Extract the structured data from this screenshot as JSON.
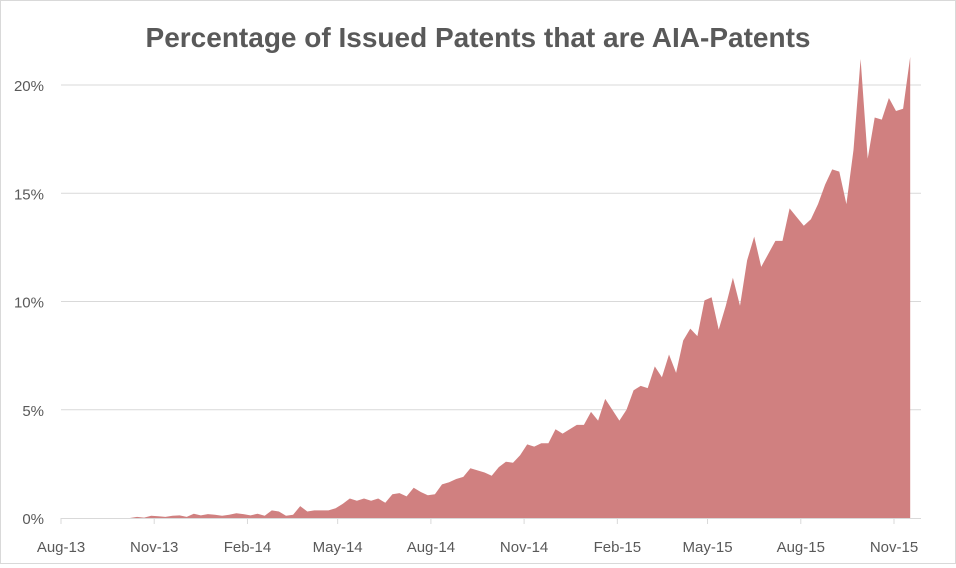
{
  "chart_data": {
    "type": "area",
    "title": "Percentage of Issued Patents that are AIA-Patents",
    "xlabel": "",
    "ylabel": "",
    "ylim": [
      0,
      0.2
    ],
    "y_ticks": [
      0,
      0.05,
      0.1,
      0.15,
      0.2
    ],
    "y_tick_labels": [
      "0%",
      "5%",
      "10%",
      "15%",
      "20%"
    ],
    "x_ticks": [
      "2013-08-01",
      "2013-11-01",
      "2014-02-01",
      "2014-05-01",
      "2014-08-01",
      "2014-11-01",
      "2015-02-01",
      "2015-05-01",
      "2015-08-01",
      "2015-11-01"
    ],
    "x_tick_labels": [
      "Aug-13",
      "Nov-13",
      "Feb-14",
      "May-14",
      "Aug-14",
      "Nov-14",
      "Feb-15",
      "May-15",
      "Aug-15",
      "Nov-15"
    ],
    "grid": "horizontal",
    "legend": "none",
    "fill_color": "#d08080",
    "x": [
      "2013-08-06",
      "2013-08-13",
      "2013-08-20",
      "2013-08-27",
      "2013-09-03",
      "2013-09-10",
      "2013-09-17",
      "2013-09-24",
      "2013-10-01",
      "2013-10-08",
      "2013-10-15",
      "2013-10-22",
      "2013-10-29",
      "2013-11-05",
      "2013-11-12",
      "2013-11-19",
      "2013-11-26",
      "2013-12-03",
      "2013-12-10",
      "2013-12-17",
      "2013-12-24",
      "2013-12-31",
      "2014-01-07",
      "2014-01-14",
      "2014-01-21",
      "2014-01-28",
      "2014-02-04",
      "2014-02-11",
      "2014-02-18",
      "2014-02-25",
      "2014-03-04",
      "2014-03-11",
      "2014-03-18",
      "2014-03-25",
      "2014-04-01",
      "2014-04-08",
      "2014-04-15",
      "2014-04-22",
      "2014-04-29",
      "2014-05-06",
      "2014-05-13",
      "2014-05-20",
      "2014-05-27",
      "2014-06-03",
      "2014-06-10",
      "2014-06-17",
      "2014-06-24",
      "2014-07-01",
      "2014-07-08",
      "2014-07-15",
      "2014-07-22",
      "2014-07-29",
      "2014-08-05",
      "2014-08-12",
      "2014-08-19",
      "2014-08-26",
      "2014-09-02",
      "2014-09-09",
      "2014-09-16",
      "2014-09-23",
      "2014-09-30",
      "2014-10-07",
      "2014-10-14",
      "2014-10-21",
      "2014-10-28",
      "2014-11-04",
      "2014-11-11",
      "2014-11-18",
      "2014-11-25",
      "2014-12-02",
      "2014-12-09",
      "2014-12-16",
      "2014-12-23",
      "2014-12-30",
      "2015-01-06",
      "2015-01-13",
      "2015-01-20",
      "2015-01-27",
      "2015-02-03",
      "2015-02-10",
      "2015-02-17",
      "2015-02-24",
      "2015-03-03",
      "2015-03-10",
      "2015-03-17",
      "2015-03-24",
      "2015-03-31",
      "2015-04-07",
      "2015-04-14",
      "2015-04-21",
      "2015-04-28",
      "2015-05-05",
      "2015-05-12",
      "2015-05-19",
      "2015-05-26",
      "2015-06-02",
      "2015-06-09",
      "2015-06-16",
      "2015-06-23",
      "2015-06-30",
      "2015-07-07",
      "2015-07-14",
      "2015-07-21",
      "2015-07-28",
      "2015-08-04",
      "2015-08-11",
      "2015-08-18",
      "2015-08-25",
      "2015-09-01",
      "2015-09-08",
      "2015-09-15",
      "2015-09-22",
      "2015-09-29",
      "2015-10-06",
      "2015-10-13",
      "2015-10-20",
      "2015-10-27",
      "2015-11-03",
      "2015-11-10",
      "2015-11-17"
    ],
    "values": [
      0,
      0,
      0,
      0,
      0,
      0,
      0,
      0,
      0,
      0,
      0.0005,
      0.0002,
      0.001,
      0.0008,
      0.0005,
      0.001,
      0.0012,
      0.0005,
      0.002,
      0.0012,
      0.0018,
      0.0015,
      0.001,
      0.0015,
      0.0022,
      0.0018,
      0.0012,
      0.002,
      0.001,
      0.0035,
      0.003,
      0.001,
      0.0015,
      0.0055,
      0.003,
      0.0035,
      0.0035,
      0.0035,
      0.0045,
      0.0065,
      0.009,
      0.008,
      0.009,
      0.008,
      0.009,
      0.007,
      0.011,
      0.0115,
      0.01,
      0.014,
      0.012,
      0.0105,
      0.011,
      0.0155,
      0.0165,
      0.018,
      0.019,
      0.023,
      0.022,
      0.021,
      0.0195,
      0.0235,
      0.026,
      0.0255,
      0.029,
      0.034,
      0.033,
      0.0345,
      0.0345,
      0.041,
      0.039,
      0.041,
      0.043,
      0.043,
      0.049,
      0.045,
      0.055,
      0.05,
      0.045,
      0.05,
      0.059,
      0.061,
      0.06,
      0.07,
      0.065,
      0.0755,
      0.067,
      0.082,
      0.0875,
      0.084,
      0.1005,
      0.102,
      0.087,
      0.098,
      0.111,
      0.098,
      0.119,
      0.13,
      0.116,
      0.122,
      0.128,
      0.128,
      0.143,
      0.139,
      0.135,
      0.138,
      0.145,
      0.154,
      0.161,
      0.16,
      0.145,
      0.17,
      0.212,
      0.166,
      0.185,
      0.184,
      0.194,
      0.188,
      0.189,
      0.213
    ]
  }
}
